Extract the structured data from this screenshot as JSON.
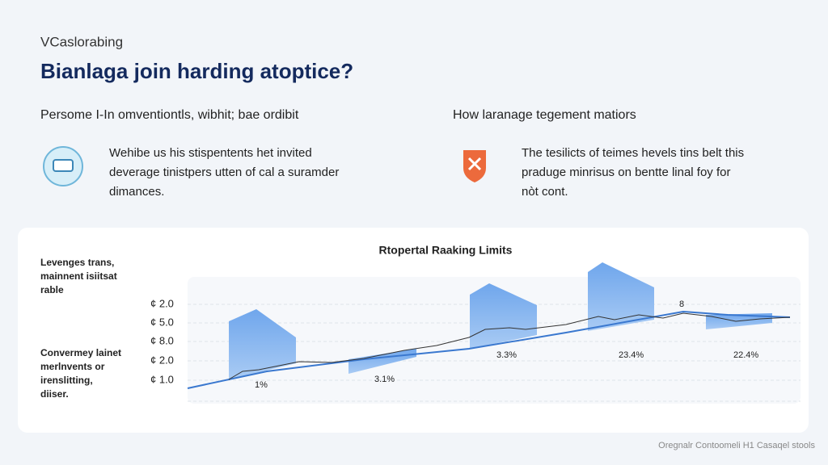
{
  "brand": "VCaslorabing",
  "title": "Bianlaga join harding atoptice?",
  "columns": [
    {
      "heading": "Persome I-In omventiontls, wibhit; bae ordibit",
      "lines": [
        "Wehibe us his stispentents het invited",
        "deverage tinistpers utten of cal a suramder",
        "dimances."
      ]
    },
    {
      "heading": "How laranage tegement matiors",
      "lines": [
        "The tesilicts of teimes hevels tins belt this",
        "praduge minrisus on bentte linal foy for",
        "nòt cont."
      ]
    }
  ],
  "chart": {
    "title": "Rtopertal Raaking Limits",
    "notes": [
      [
        "Levenges trans,",
        "mainnent isiitsat",
        "rable"
      ],
      [
        "Convermey lainet",
        "merlnvents or",
        "irenslitting,",
        "diiser."
      ]
    ],
    "axis_labels": [
      "¢ 2.0",
      "¢ 5.0",
      "¢ 8.0",
      "¢ 2.0",
      "¢ 1.0"
    ],
    "annotations": [
      "1%",
      "3.1%",
      "3.3%",
      "23.4%",
      "22.4%",
      "8"
    ]
  },
  "footer": "Oregnalr Contoomeli H1 Casaqel stools"
}
